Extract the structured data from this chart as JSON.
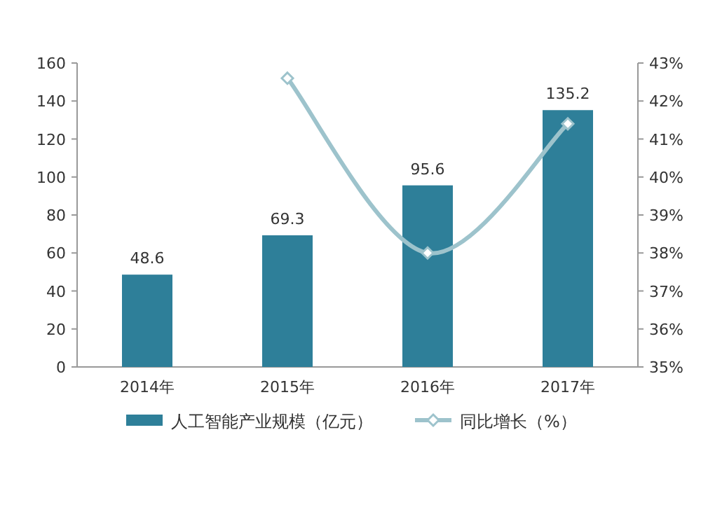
{
  "chart_data": {
    "type": "bar",
    "categories": [
      "2014年",
      "2015年",
      "2016年",
      "2017年"
    ],
    "series": [
      {
        "name": "人工智能产业规模（亿元）",
        "color": "#2e7f99",
        "values": [
          48.6,
          69.3,
          95.6,
          135.2
        ],
        "value_labels": [
          "48.6",
          "69.3",
          "95.6",
          "135.2"
        ]
      },
      {
        "name": "同比增长（%）",
        "type": "line",
        "axis": "y2",
        "color": "#9dc3cc",
        "marker": "diamond",
        "values": [
          null,
          42.6,
          38.0,
          41.4
        ]
      }
    ],
    "ylim": [
      0,
      160
    ],
    "yticks": [
      0,
      20,
      40,
      60,
      80,
      100,
      120,
      140,
      160
    ],
    "y2lim": [
      35,
      43
    ],
    "y2ticks": [
      {
        "value": 35,
        "label": "35%"
      },
      {
        "value": 36,
        "label": "36%"
      },
      {
        "value": 37,
        "label": "37%"
      },
      {
        "value": 38,
        "label": "38%"
      },
      {
        "value": 39,
        "label": "39%"
      },
      {
        "value": 40,
        "label": "40%"
      },
      {
        "value": 41,
        "label": "41%"
      },
      {
        "value": 42,
        "label": "42%"
      },
      {
        "value": 43,
        "label": "43%"
      }
    ],
    "legend": "bottom"
  }
}
